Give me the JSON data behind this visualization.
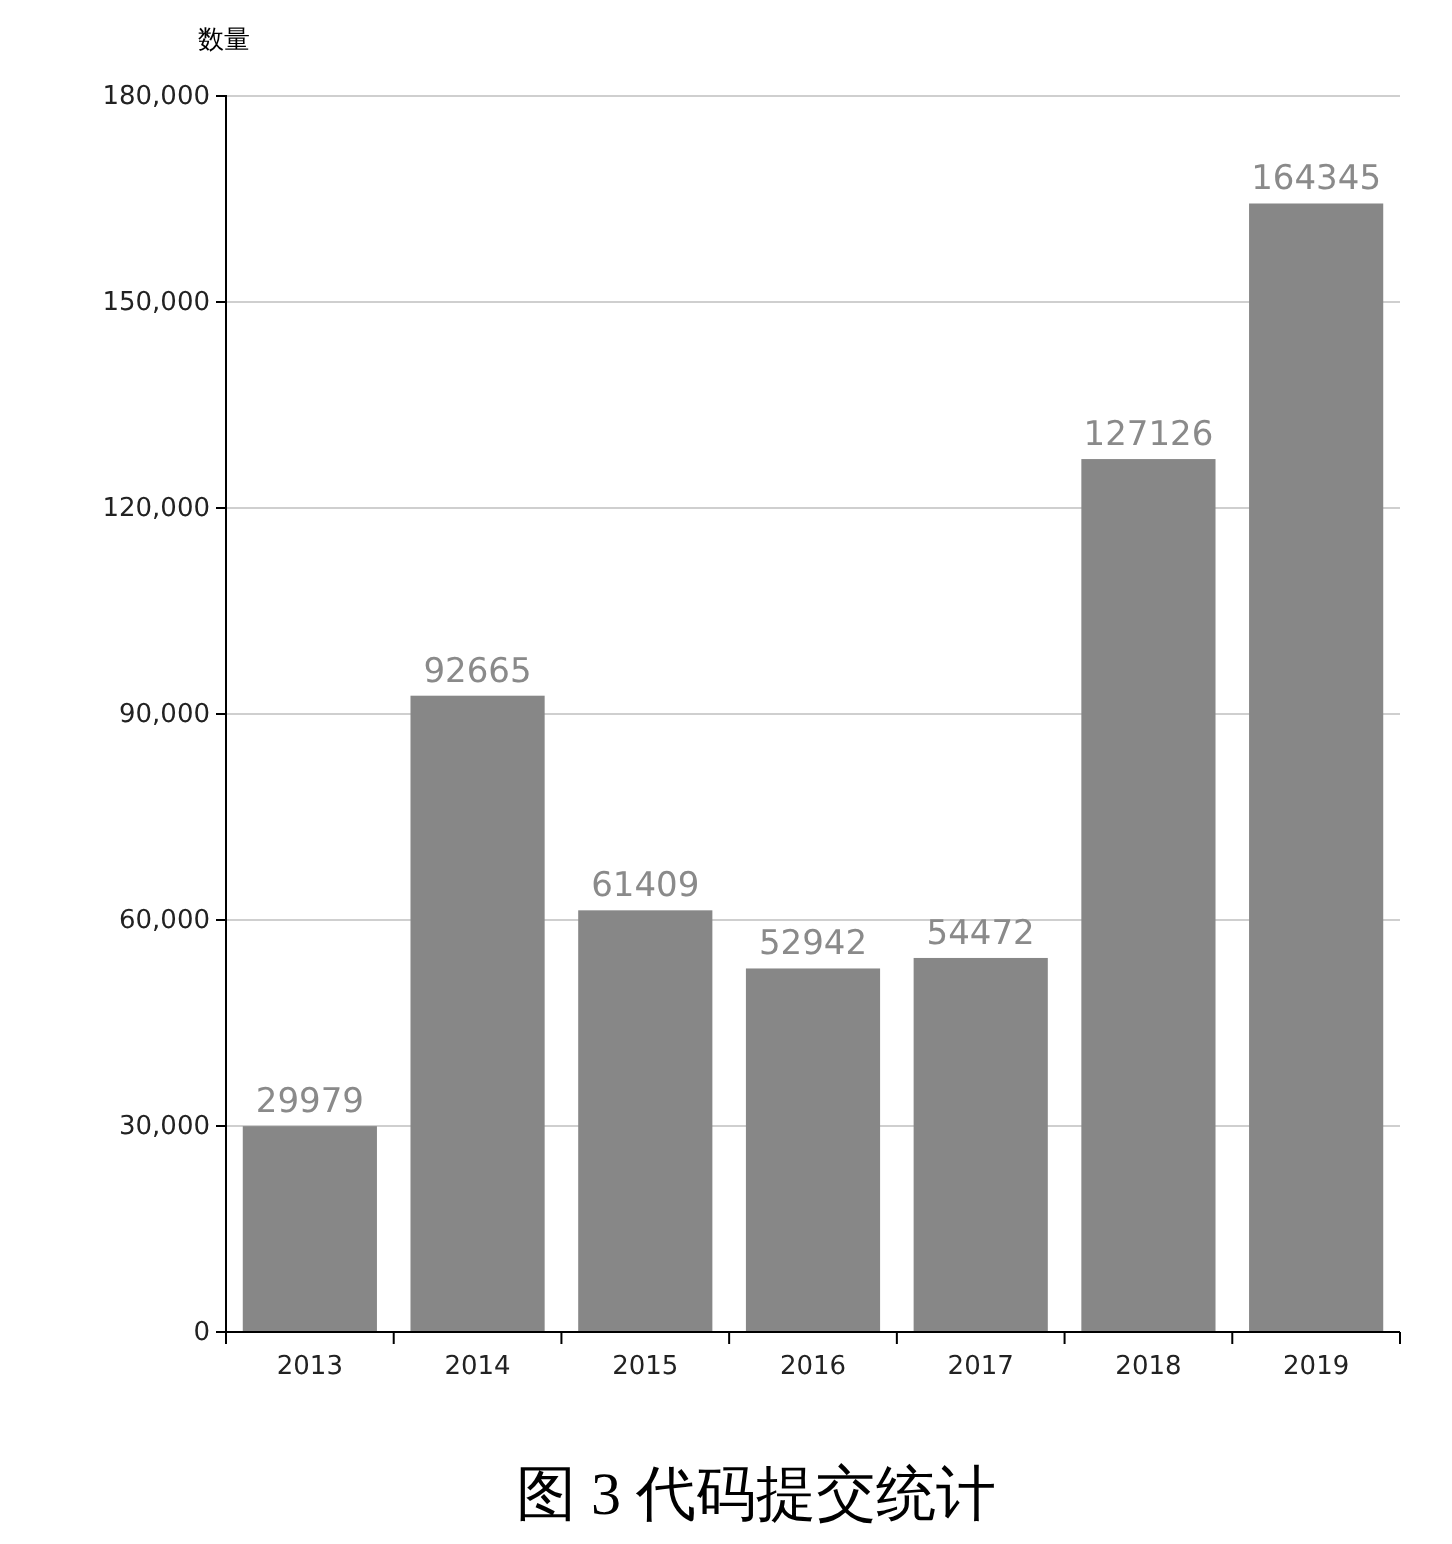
{
  "chart_data": {
    "type": "bar",
    "title": "图 3 代码提交统计",
    "ylabel": "数量",
    "categories": [
      "2013",
      "2014",
      "2015",
      "2016",
      "2017",
      "2018",
      "2019"
    ],
    "values": [
      29979,
      92665,
      61409,
      52942,
      54472,
      127126,
      164345
    ],
    "color": "#878787",
    "data_labels": true,
    "grid": "y",
    "ylim": [
      0,
      180000
    ],
    "yticks": [
      {
        "value": 0,
        "label": "0"
      },
      {
        "value": 30000,
        "label": "30,000"
      },
      {
        "value": 60000,
        "label": "60,000"
      },
      {
        "value": 90000,
        "label": "90,000"
      },
      {
        "value": 120000,
        "label": "120,000"
      },
      {
        "value": 150000,
        "label": "150,000"
      },
      {
        "value": 180000,
        "label": "180,000"
      }
    ]
  }
}
